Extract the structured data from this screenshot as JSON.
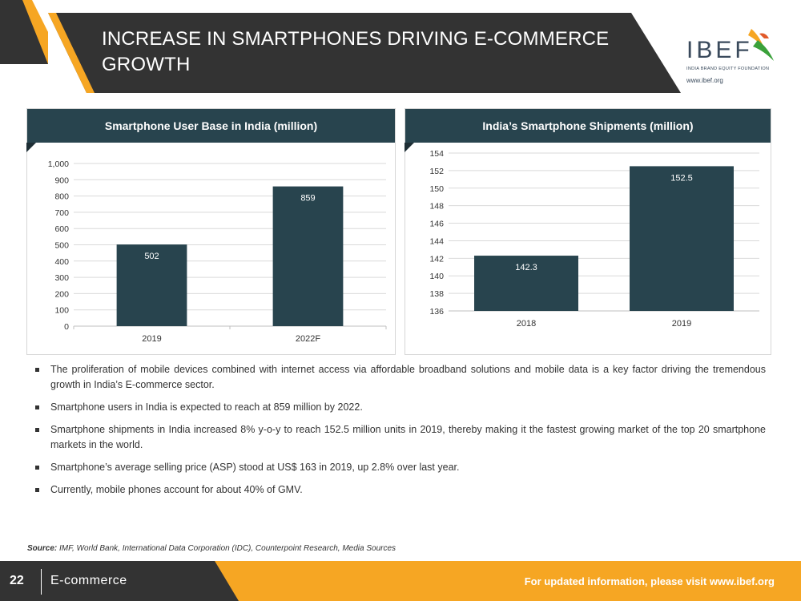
{
  "header": {
    "title_line1": "INCREASE IN SMARTPHONES DRIVING E-COMMERCE",
    "title_line2": "GROWTH",
    "logo_text": "IBEF",
    "logo_subtitle": "INDIA BRAND EQUITY FOUNDATION",
    "logo_url": "www.ibef.org"
  },
  "colors": {
    "dark": "#333333",
    "orange": "#f6a623",
    "teal": "#28444e",
    "bar": "#28444e"
  },
  "chart_data": [
    {
      "type": "bar",
      "title": "Smartphone User Base in India (million)",
      "categories": [
        "2019",
        "2022F"
      ],
      "values": [
        502,
        859
      ],
      "value_labels": [
        "502",
        "859"
      ],
      "ylim": [
        0,
        1000
      ],
      "yticks": [
        0,
        100,
        200,
        300,
        400,
        500,
        600,
        700,
        800,
        900,
        1000
      ],
      "ytick_labels": [
        "0",
        "100",
        "200",
        "300",
        "400",
        "500",
        "600",
        "700",
        "800",
        "900",
        "1,000"
      ],
      "grid": true,
      "xlabel": "",
      "ylabel": ""
    },
    {
      "type": "bar",
      "title": "India’s Smartphone Shipments (million)",
      "categories": [
        "2018",
        "2019"
      ],
      "values": [
        142.3,
        152.5
      ],
      "value_labels": [
        "142.3",
        "152.5"
      ],
      "ylim": [
        136,
        154
      ],
      "yticks": [
        136,
        138,
        140,
        142,
        144,
        146,
        148,
        150,
        152,
        154
      ],
      "ytick_labels": [
        "136",
        "138",
        "140",
        "142",
        "144",
        "146",
        "148",
        "150",
        "152",
        "154"
      ],
      "grid": true,
      "xlabel": "",
      "ylabel": ""
    }
  ],
  "bullets": [
    "The proliferation of mobile devices combined with internet access via affordable broadband solutions and mobile data is a key factor driving the tremendous growth in India’s E-commerce sector.",
    "Smartphone users in India is expected to reach at 859 million by 2022.",
    "Smartphone shipments in India increased 8% y-o-y to reach 152.5 million units in 2019, thereby making it the fastest growing market of the top 20 smartphone markets in the world.",
    "Smartphone’s average selling price (ASP) stood at US$ 163 in 2019, up 2.8% over last year.",
    "Currently, mobile phones account for about 40% of GMV."
  ],
  "source": {
    "label": "Source:",
    "text": "IMF, World Bank, International Data Corporation (IDC), Counterpoint Research, Media Sources"
  },
  "footer": {
    "page_number": "22",
    "section": "E-commerce",
    "note": "For updated information, please visit www.ibef.org"
  }
}
